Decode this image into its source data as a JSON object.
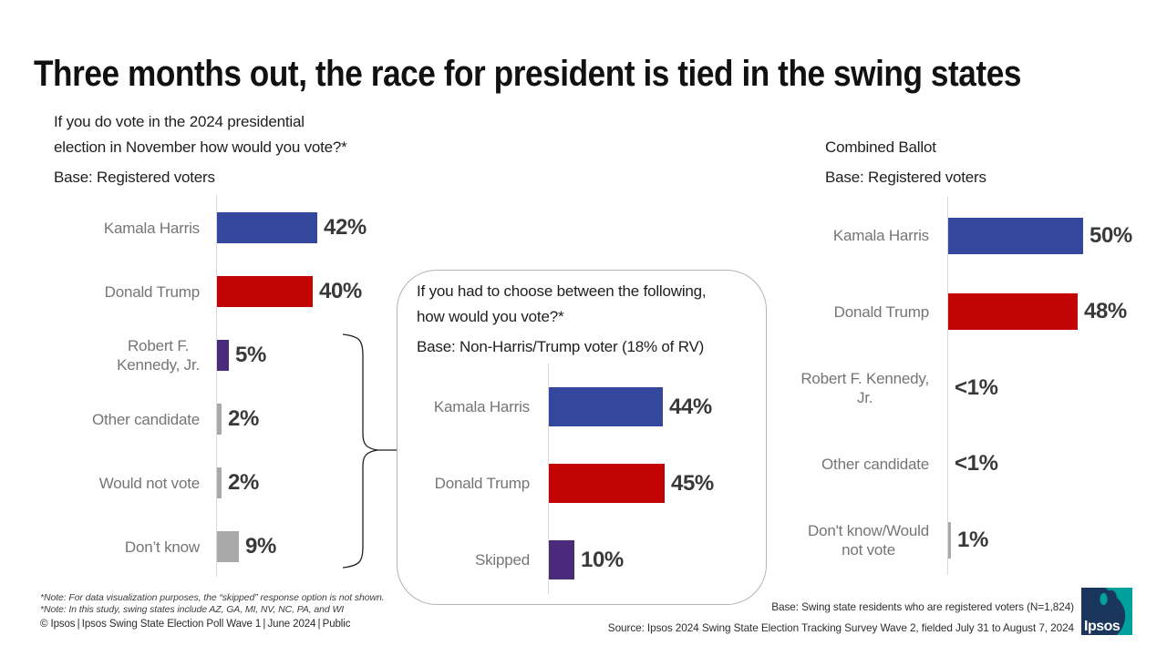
{
  "title": "Three months out, the race for president is tied in the swing states",
  "colors": {
    "harris_blue": "#33479C",
    "trump_red": "#C20504",
    "third_purple": "#4A2A7A",
    "neutral_gray": "#A9A9A9",
    "axis_gray": "#D9D9D9",
    "label_gray": "#757575",
    "value_dark": "#393939",
    "logo_navy": "#1A365D",
    "logo_teal": "#00A09D"
  },
  "chart_data": [
    {
      "type": "bar",
      "orientation": "horizontal",
      "question": "If you do vote in the 2024 presidential\nelection in November how would you vote?*",
      "base": "Base: Registered voters",
      "unit": "%",
      "xlim": [
        0,
        50
      ],
      "rows": [
        {
          "label": "Kamala Harris",
          "value": 42,
          "display": "42%",
          "color": "harris_blue"
        },
        {
          "label": "Donald Trump",
          "value": 40,
          "display": "40%",
          "color": "trump_red"
        },
        {
          "label": "Robert F.\nKennedy, Jr.",
          "value": 5,
          "display": "5%",
          "color": "third_purple"
        },
        {
          "label": "Other candidate",
          "value": 2,
          "display": "2%",
          "color": "neutral_gray"
        },
        {
          "label": "Would not vote",
          "value": 2,
          "display": "2%",
          "color": "neutral_gray"
        },
        {
          "label": "Don’t know",
          "value": 9,
          "display": "9%",
          "color": "neutral_gray"
        }
      ]
    },
    {
      "type": "bar",
      "orientation": "horizontal",
      "question": "If you had to choose between the following,\nhow would you vote?*",
      "base": "Base: Non-Harris/Trump voter (18% of RV)",
      "unit": "%",
      "xlim": [
        0,
        50
      ],
      "rows": [
        {
          "label": "Kamala Harris",
          "value": 44,
          "display": "44%",
          "color": "harris_blue"
        },
        {
          "label": "Donald Trump",
          "value": 45,
          "display": "45%",
          "color": "trump_red"
        },
        {
          "label": "Skipped",
          "value": 10,
          "display": "10%",
          "color": "third_purple"
        }
      ]
    },
    {
      "type": "bar",
      "orientation": "horizontal",
      "question": "Combined Ballot",
      "base": "Base: Registered voters",
      "unit": "%",
      "xlim": [
        0,
        50
      ],
      "rows": [
        {
          "label": "Kamala Harris",
          "value": 50,
          "display": "50%",
          "color": "harris_blue"
        },
        {
          "label": "Donald Trump",
          "value": 48,
          "display": "48%",
          "color": "trump_red"
        },
        {
          "label": "Robert F. Kennedy,\nJr.",
          "value": 0.4,
          "display": "<1%",
          "color": "neutral_gray",
          "no_bar": true
        },
        {
          "label": "Other candidate",
          "value": 0.4,
          "display": "<1%",
          "color": "neutral_gray",
          "no_bar": true
        },
        {
          "label": "Don't know/Would\nnot vote",
          "value": 1,
          "display": "1%",
          "color": "neutral_gray"
        }
      ]
    }
  ],
  "footnotes": {
    "note1": "*Note: For data visualization purposes, the “skipped” response option is not shown.",
    "note2": "*Note: In this study, swing states include  AZ, GA, MI, NV, NC, PA, and WI",
    "copyright": "© Ipsos | Ipsos Swing State Election Poll Wave 1 | June 2024 | Public"
  },
  "source": {
    "base_line": "Base: Swing state residents  who are registered  voters (N=1,824)",
    "source_line": "Source: Ipsos 2024 Swing State Election Tracking Survey Wave 2, fielded July 31 to August 7, 2024"
  },
  "logo": {
    "brand": "Ipsos"
  }
}
